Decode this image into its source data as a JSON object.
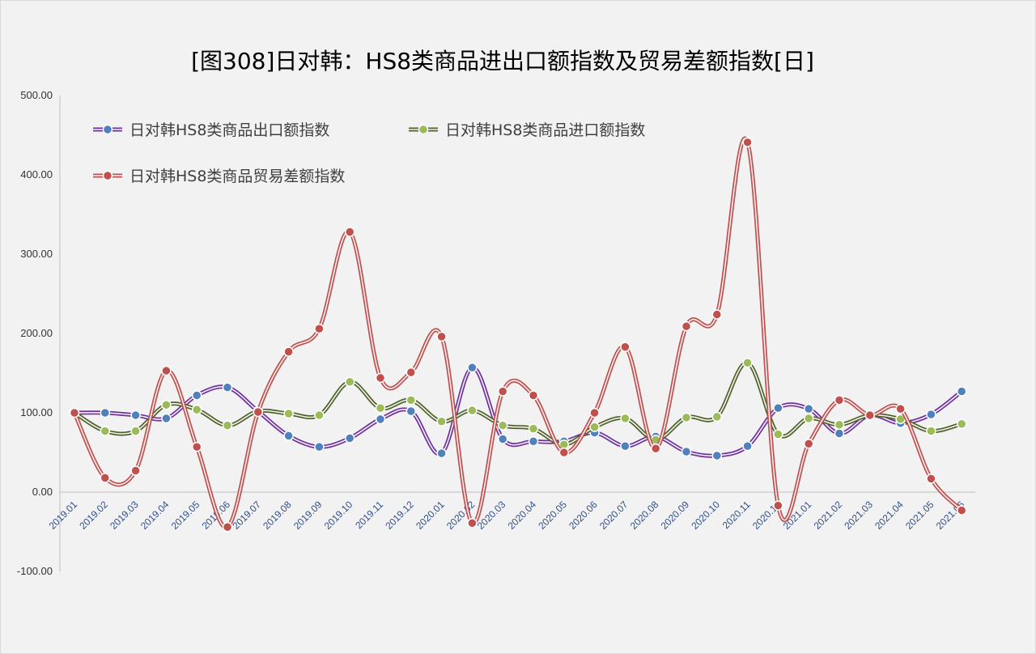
{
  "chart_data": {
    "type": "line",
    "title": "[图308]日对韩：HS8类商品进出口额指数及贸易差额指数[日]",
    "xlabel": "",
    "ylabel": "",
    "ylim": [
      -100,
      500
    ],
    "y_ticks": [
      "500.00",
      "400.00",
      "300.00",
      "200.00",
      "100.00",
      "0.00",
      "-100.00"
    ],
    "y_tick_values": [
      500,
      400,
      300,
      200,
      100,
      0,
      -100
    ],
    "grid": false,
    "legend_position": "top-left",
    "categories": [
      "2019.01",
      "2019.02",
      "2019.03",
      "2019.04",
      "2019.05",
      "2019.06",
      "2019.07",
      "2019.08",
      "2019.09",
      "2019.10",
      "2019.11",
      "2019.12",
      "2020.01",
      "2020.02",
      "2020.03",
      "2020.04",
      "2020.05",
      "2020.06",
      "2020.07",
      "2020.08",
      "2020.09",
      "2020.10",
      "2020.11",
      "2020.12",
      "2021.01",
      "2021.02",
      "2021.03",
      "2021.04",
      "2021.05",
      "2021.06"
    ],
    "series": [
      {
        "name": "日对韩HS8类商品出口额指数",
        "line_color": "#7030a0",
        "marker_color": "#4f81bd",
        "values": [
          100,
          100,
          97,
          93,
          122,
          132,
          102,
          71,
          57,
          68,
          92,
          102,
          49,
          157,
          67,
          64,
          64,
          75,
          58,
          70,
          51,
          46,
          58,
          106,
          105,
          74,
          97,
          87,
          98,
          127
        ]
      },
      {
        "name": "日对韩HS8类商品进口额指数",
        "line_color": "#4f6228",
        "marker_color": "#9bbb59",
        "values": [
          100,
          77,
          77,
          110,
          104,
          84,
          102,
          99,
          97,
          139,
          106,
          116,
          89,
          103,
          84,
          80,
          60,
          82,
          93,
          66,
          94,
          95,
          163,
          73,
          93,
          85,
          97,
          92,
          77,
          86
        ]
      },
      {
        "name": "日对韩HS8类商品贸易差额指数",
        "line_color": "#c0504d",
        "marker_color": "#c0504d",
        "values": [
          100,
          18,
          27,
          153,
          57,
          -44,
          101,
          177,
          206,
          328,
          144,
          151,
          196,
          -39,
          127,
          122,
          50,
          100,
          183,
          55,
          209,
          224,
          441,
          -17,
          61,
          116,
          97,
          105,
          17,
          -23
        ]
      }
    ]
  }
}
